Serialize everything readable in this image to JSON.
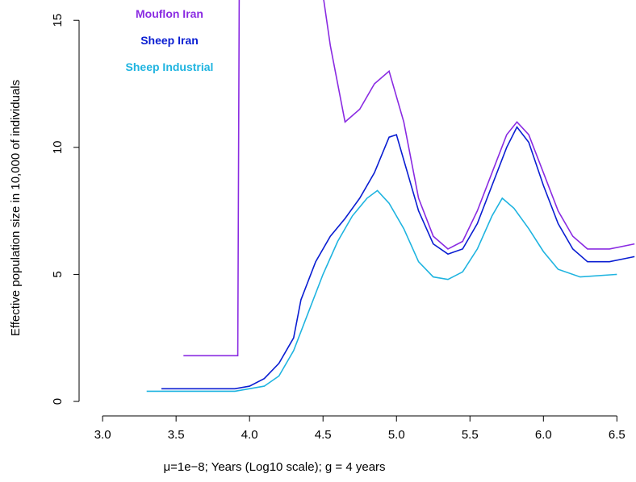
{
  "chart_data": {
    "type": "line",
    "x_label": "μ=1e−8; Years (Log10 scale); g = 4 years",
    "y_label": "Effective population size in 10,000 of individuals",
    "legend": "top-left",
    "xlim": [
      2.84,
      6.63
    ],
    "ylim": [
      -0.57,
      15.8
    ],
    "xticks": [
      {
        "value": 3,
        "label": "3.0"
      },
      {
        "value": 3.5,
        "label": "3.5"
      },
      {
        "value": 4,
        "label": "4.0"
      },
      {
        "value": 4.5,
        "label": "4.5"
      },
      {
        "value": 5,
        "label": "5.0"
      },
      {
        "value": 5.5,
        "label": "5.5"
      },
      {
        "value": 6,
        "label": "6.0"
      },
      {
        "value": 6.5,
        "label": "6.5"
      }
    ],
    "yticks": [
      0,
      5,
      10,
      15
    ],
    "series": [
      {
        "name": "Mouflon Iran",
        "color": "#8a2be2",
        "x": [
          3.55,
          3.92,
          3.93,
          4.2,
          4.5,
          4.55,
          4.65,
          4.75,
          4.85,
          4.95,
          5.05,
          5.15,
          5.25,
          5.35,
          5.45,
          5.55,
          5.65,
          5.75,
          5.82,
          5.9,
          6.0,
          6.1,
          6.2,
          6.3,
          6.45,
          6.62
        ],
        "values": [
          1.8,
          1.8,
          16,
          null,
          16,
          14,
          11,
          11.5,
          12.5,
          13,
          11,
          8,
          6.5,
          6,
          6.3,
          7.5,
          9,
          10.5,
          11,
          10.5,
          9,
          7.5,
          6.5,
          6,
          6,
          6.2
        ]
      },
      {
        "name": "Sheep Iran",
        "color": "#0a1ed2",
        "x": [
          3.4,
          3.9,
          4.0,
          4.1,
          4.2,
          4.3,
          4.35,
          4.45,
          4.55,
          4.65,
          4.75,
          4.85,
          4.95,
          5.0,
          5.05,
          5.15,
          5.25,
          5.35,
          5.45,
          5.55,
          5.65,
          5.75,
          5.82,
          5.9,
          6.0,
          6.1,
          6.2,
          6.3,
          6.45,
          6.62
        ],
        "values": [
          0.5,
          0.5,
          0.6,
          0.9,
          1.5,
          2.5,
          4,
          5.5,
          6.5,
          7.2,
          8,
          9,
          10.4,
          10.5,
          9.5,
          7.5,
          6.2,
          5.8,
          6,
          7,
          8.5,
          10,
          10.8,
          10.2,
          8.5,
          7,
          6,
          5.5,
          5.5,
          5.7
        ]
      },
      {
        "name": "Sheep Industrial",
        "color": "#1fb4e0",
        "x": [
          3.3,
          3.9,
          4.1,
          4.2,
          4.3,
          4.4,
          4.5,
          4.6,
          4.7,
          4.8,
          4.87,
          4.95,
          5.05,
          5.15,
          5.25,
          5.35,
          5.45,
          5.55,
          5.65,
          5.72,
          5.8,
          5.9,
          6.0,
          6.1,
          6.25,
          6.5
        ],
        "values": [
          0.4,
          0.4,
          0.6,
          1,
          2,
          3.5,
          5,
          6.3,
          7.3,
          8,
          8.3,
          7.8,
          6.8,
          5.5,
          4.9,
          4.8,
          5.1,
          6,
          7.3,
          8,
          7.6,
          6.8,
          5.9,
          5.2,
          4.9,
          5
        ]
      }
    ]
  }
}
